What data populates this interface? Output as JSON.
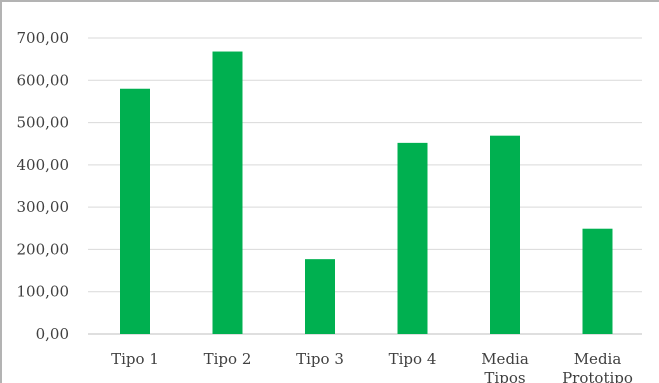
{
  "chart_data": {
    "type": "bar",
    "categories": [
      "Tipo 1",
      "Tipo 2",
      "Tipo 3",
      "Tipo 4",
      "Media\nTipos",
      "Media\nPrototipo"
    ],
    "values": [
      580,
      668,
      177,
      452,
      469,
      249
    ],
    "ylim": [
      0,
      700
    ],
    "yticks": [
      0,
      100,
      200,
      300,
      400,
      500,
      600,
      700
    ],
    "ytick_labels": [
      "0,00",
      "100,00",
      "200,00",
      "300,00",
      "400,00",
      "500,00",
      "600,00",
      "700,00"
    ],
    "grid": true,
    "bar_color": "#00b050",
    "grid_color": "#d9d9d9"
  }
}
